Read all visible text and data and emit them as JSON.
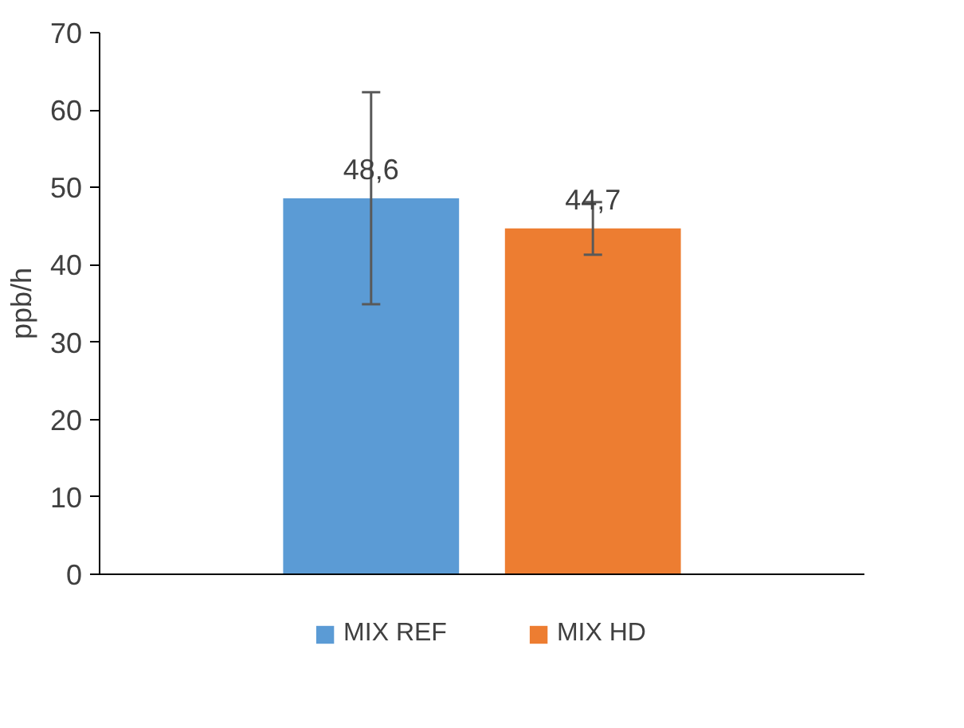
{
  "chart_data": {
    "type": "bar",
    "ylabel": "ppb/h",
    "categories": [
      null
    ],
    "series": [
      {
        "name": "MIX REF",
        "color": "#5b9bd5",
        "values": [
          48.6
        ],
        "errors": [
          13.7
        ],
        "value_labels": [
          "48,6"
        ]
      },
      {
        "name": "MIX HD",
        "color": "#ed7d31",
        "values": [
          44.7
        ],
        "errors": [
          3.4
        ],
        "value_labels": [
          "44,7"
        ]
      }
    ],
    "ylim": [
      0,
      70
    ],
    "yticks": [
      0,
      10,
      20,
      30,
      40,
      50,
      60,
      70
    ],
    "grid": false,
    "legend": "bottom"
  }
}
